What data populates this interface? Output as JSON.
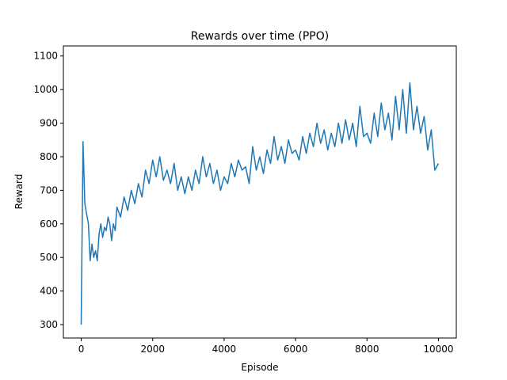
{
  "chart_data": {
    "type": "line",
    "title": "Rewards over time (PPO)",
    "xlabel": "Episode",
    "ylabel": "Reward",
    "xlim": [
      -500,
      10500
    ],
    "ylim": [
      260,
      1130
    ],
    "xticks": [
      0,
      2000,
      4000,
      6000,
      8000,
      10000
    ],
    "xtick_labels": [
      "0",
      "2000",
      "4000",
      "6000",
      "8000",
      "10000"
    ],
    "yticks": [
      300,
      400,
      500,
      600,
      700,
      800,
      900,
      1000,
      1100
    ],
    "ytick_labels": [
      "300",
      "400",
      "500",
      "600",
      "700",
      "800",
      "900",
      "1000",
      "1100"
    ],
    "grid": false,
    "legend": "none",
    "series": [
      {
        "color": "#1f77b4",
        "x": [
          0,
          50,
          100,
          150,
          200,
          250,
          300,
          350,
          400,
          450,
          500,
          550,
          600,
          650,
          700,
          750,
          800,
          850,
          900,
          950,
          1000,
          1100,
          1200,
          1300,
          1400,
          1500,
          1600,
          1700,
          1800,
          1900,
          2000,
          2100,
          2200,
          2300,
          2400,
          2500,
          2600,
          2700,
          2800,
          2900,
          3000,
          3100,
          3200,
          3300,
          3400,
          3500,
          3600,
          3700,
          3800,
          3900,
          4000,
          4100,
          4200,
          4300,
          4400,
          4500,
          4600,
          4700,
          4800,
          4900,
          5000,
          5100,
          5200,
          5300,
          5400,
          5500,
          5600,
          5700,
          5800,
          5900,
          6000,
          6100,
          6200,
          6300,
          6400,
          6500,
          6600,
          6700,
          6800,
          6900,
          7000,
          7100,
          7200,
          7300,
          7400,
          7500,
          7600,
          7700,
          7800,
          7900,
          8000,
          8100,
          8200,
          8300,
          8400,
          8500,
          8600,
          8700,
          8800,
          8900,
          9000,
          9100,
          9200,
          9300,
          9400,
          9500,
          9600,
          9700,
          9800,
          9900,
          10000
        ],
        "y": [
          300,
          845,
          660,
          630,
          600,
          490,
          540,
          500,
          520,
          490,
          570,
          600,
          560,
          590,
          580,
          620,
          600,
          550,
          600,
          580,
          650,
          620,
          680,
          640,
          700,
          660,
          720,
          680,
          760,
          720,
          790,
          740,
          800,
          730,
          760,
          720,
          780,
          700,
          740,
          690,
          740,
          700,
          760,
          720,
          800,
          740,
          780,
          720,
          760,
          700,
          740,
          720,
          780,
          740,
          790,
          760,
          770,
          720,
          830,
          760,
          800,
          750,
          820,
          780,
          860,
          790,
          830,
          780,
          850,
          810,
          820,
          790,
          860,
          810,
          870,
          830,
          900,
          840,
          880,
          820,
          870,
          830,
          900,
          840,
          910,
          850,
          900,
          830,
          950,
          860,
          870,
          840,
          930,
          860,
          960,
          880,
          930,
          850,
          980,
          880,
          1000,
          870,
          1020,
          880,
          950,
          870,
          920,
          820,
          880,
          760,
          780
        ]
      }
    ]
  }
}
